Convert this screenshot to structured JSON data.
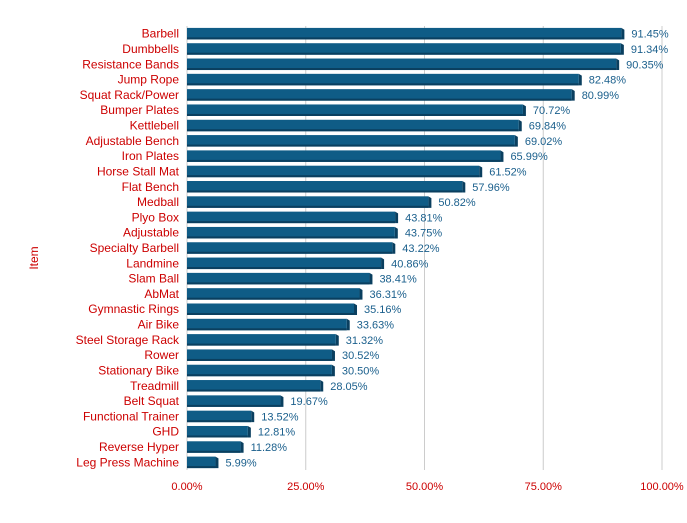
{
  "chart_data": {
    "type": "bar",
    "orientation": "horizontal",
    "ylabel": "Item",
    "xlabel": "",
    "title": "",
    "xlim": [
      0,
      100
    ],
    "x_ticks": [
      "0.00%",
      "25.00%",
      "50.00%",
      "75.00%",
      "100.00%"
    ],
    "grid": "vertical",
    "legend": "none",
    "colors": {
      "bar": "#0f5c86",
      "bar_dark": "#0a3f5f",
      "category_label": "#cc0000",
      "value_label": "#1a5f8c",
      "grid": "#cccccc"
    },
    "categories": [
      "Barbell",
      "Dumbbells",
      "Resistance Bands",
      "Jump Rope",
      "Squat Rack/Power",
      "Bumper Plates",
      "Kettlebell",
      "Adjustable Bench",
      "Iron Plates",
      "Horse Stall Mat",
      "Flat Bench",
      "Medball",
      "Plyo Box",
      "Adjustable",
      "Specialty Barbell",
      "Landmine",
      "Slam Ball",
      "AbMat",
      "Gymnastic Rings",
      "Air Bike",
      "Steel Storage Rack",
      "Rower",
      "Stationary Bike",
      "Treadmill",
      "Belt Squat",
      "Functional Trainer",
      "GHD",
      "Reverse Hyper",
      "Leg Press Machine"
    ],
    "values": [
      91.45,
      91.34,
      90.35,
      82.48,
      80.99,
      70.72,
      69.84,
      69.02,
      65.99,
      61.52,
      57.96,
      50.82,
      43.81,
      43.75,
      43.22,
      40.86,
      38.41,
      36.31,
      35.16,
      33.63,
      31.32,
      30.52,
      30.5,
      28.05,
      19.67,
      13.52,
      12.81,
      11.28,
      5.99
    ],
    "value_labels": [
      "91.45%",
      "91.34%",
      "90.35%",
      "82.48%",
      "80.99%",
      "70.72%",
      "69.84%",
      "69.02%",
      "65.99%",
      "61.52%",
      "57.96%",
      "50.82%",
      "43.81%",
      "43.75%",
      "43.22%",
      "40.86%",
      "38.41%",
      "36.31%",
      "35.16%",
      "33.63%",
      "31.32%",
      "30.52%",
      "30.50%",
      "28.05%",
      "19.67%",
      "13.52%",
      "12.81%",
      "11.28%",
      "5.99%"
    ]
  }
}
